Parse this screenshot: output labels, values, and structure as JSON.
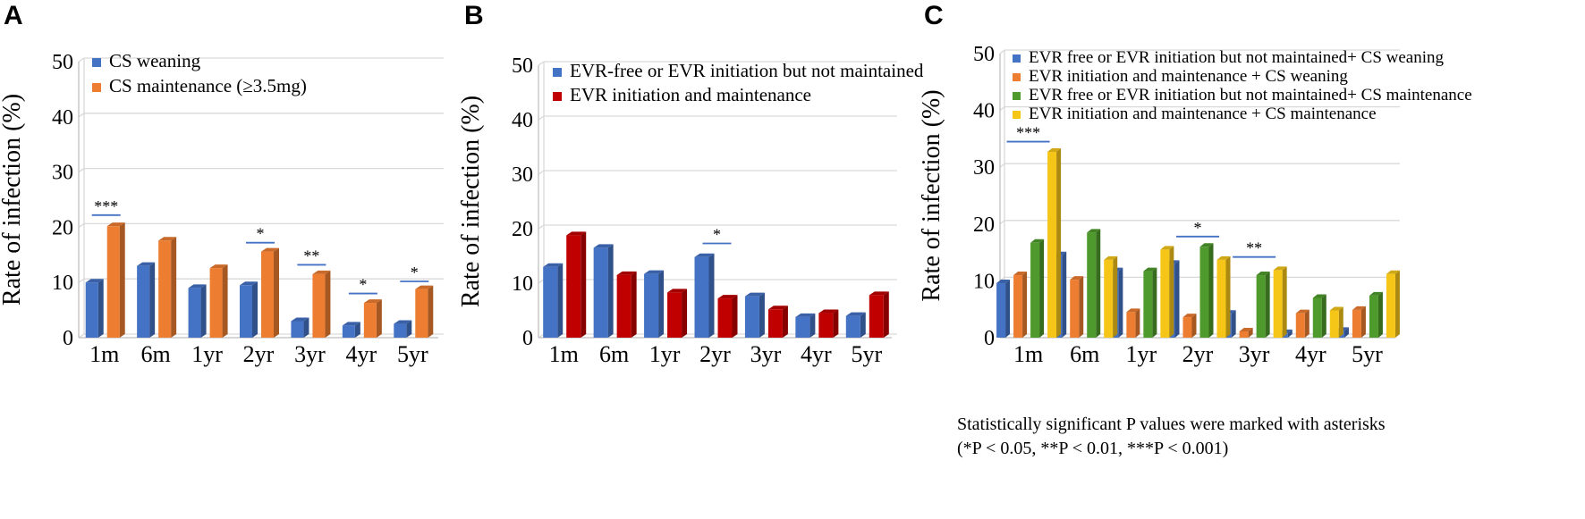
{
  "colors": {
    "blue": "#4472c4",
    "orange": "#ed7d31",
    "red": "#c00000",
    "green": "#4e9a2c",
    "yellow": "#f5c518"
  },
  "footnote": {
    "line1": "Statistically significant P values were marked with asterisks",
    "line2": "(*P < 0.05, **P < 0.01, ***P < 0.001)"
  },
  "chart_data": [
    {
      "panel": "A",
      "type": "bar",
      "ylabel": "Rate of infection (%)",
      "ylim": [
        0,
        50
      ],
      "yticks": [
        0,
        10,
        20,
        30,
        40,
        50
      ],
      "categories": [
        "1m",
        "6m",
        "1yr",
        "2yr",
        "3yr",
        "4yr",
        "5yr"
      ],
      "series": [
        {
          "name": "CS weaning",
          "color": "blue",
          "values": [
            10,
            13,
            9,
            9.5,
            3,
            2.2,
            2.5
          ]
        },
        {
          "name": "CS maintenance (≥3.5mg)",
          "color": "orange",
          "values": [
            20.2,
            17.6,
            12.6,
            15.6,
            11.5,
            6.3,
            8.8
          ]
        }
      ],
      "significance": [
        {
          "category": 0,
          "label": "***",
          "value": 22.2
        },
        {
          "category": 3,
          "label": "*",
          "value": 17.2
        },
        {
          "category": 4,
          "label": "**",
          "value": 13.2
        },
        {
          "category": 5,
          "label": "*",
          "value": 8.0
        },
        {
          "category": 6,
          "label": "*",
          "value": 10.2
        }
      ]
    },
    {
      "panel": "B",
      "type": "bar",
      "ylabel": "Rate of infection (%)",
      "ylim": [
        0,
        50
      ],
      "yticks": [
        0,
        10,
        20,
        30,
        40,
        50
      ],
      "categories": [
        "1m",
        "6m",
        "1yr",
        "2yr",
        "3yr",
        "4yr",
        "5yr"
      ],
      "series": [
        {
          "name": "EVR-free or EVR initiation but not maintained",
          "color": "blue",
          "values": [
            13,
            16.5,
            11.7,
            14.8,
            7.6,
            3.8,
            4
          ]
        },
        {
          "name": "EVR initiation and maintenance",
          "color": "red",
          "values": [
            18.8,
            11.5,
            8.3,
            7.2,
            5.2,
            4.5,
            7.8
          ]
        }
      ],
      "significance": [
        {
          "category": 3,
          "label": "*",
          "value": 17.3
        }
      ]
    },
    {
      "panel": "C",
      "type": "bar",
      "ylabel": "Rate of infection (%)",
      "ylim": [
        0,
        50
      ],
      "yticks": [
        0,
        10,
        20,
        30,
        40,
        50
      ],
      "categories": [
        "1m",
        "6m",
        "1yr",
        "2yr",
        "3yr",
        "4yr",
        "5yr"
      ],
      "series": [
        {
          "name": "EVR free  or EVR initiation but not maintained+ CS  weaning",
          "color": "blue",
          "values": [
            9.6,
            14.5,
            11.7,
            13,
            4.2,
            0.8,
            1.2
          ]
        },
        {
          "name": "EVR initiation and maintenance + CS  weaning",
          "color": "orange",
          "values": [
            11,
            10.2,
            4.5,
            3.6,
            1.1,
            4.3,
            4.9
          ]
        },
        {
          "name": "EVR free  or EVR initiation but not maintained+ CS maintenance",
          "color": "green",
          "values": [
            16.7,
            18.5,
            11.7,
            16,
            11,
            7,
            7.4
          ]
        },
        {
          "name": "EVR initiation and maintenance + CS maintenance",
          "color": "yellow",
          "values": [
            32.7,
            13.7,
            15.5,
            13.7,
            11.9,
            4.8,
            11.2
          ]
        }
      ],
      "significance": [
        {
          "category": 0,
          "label": "***",
          "value": 34.5
        },
        {
          "category": 3,
          "label": "*",
          "value": 17.8
        },
        {
          "category": 4,
          "label": "**",
          "value": 14.2
        }
      ]
    }
  ]
}
